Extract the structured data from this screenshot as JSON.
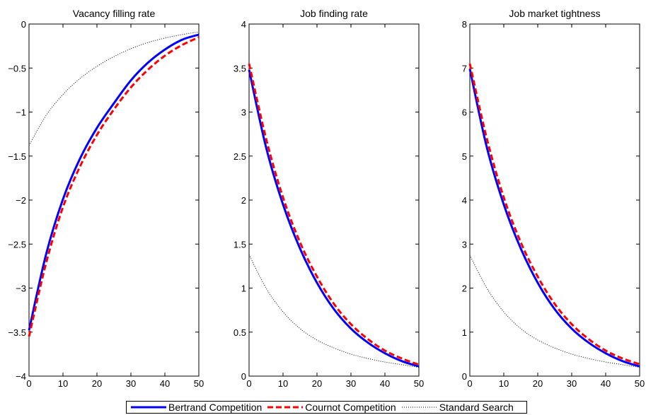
{
  "colors": {
    "bertrand": "#0000ff",
    "cournot": "#ff0000",
    "standard": "#000000"
  },
  "legend": {
    "bertrand": "Bertrand Competition",
    "cournot": "Cournot Competition",
    "standard": "Standard Search"
  },
  "chart_data": [
    {
      "type": "line",
      "title": "Vacancy filling rate",
      "xlim": [
        0,
        50
      ],
      "ylim": [
        -4,
        0
      ],
      "xticks": [
        0,
        10,
        20,
        30,
        40,
        50
      ],
      "yticks": [
        -4,
        -3.5,
        -3,
        -2.5,
        -2,
        -1.5,
        -1,
        -0.5,
        0
      ],
      "ytick_labels": [
        "−4",
        "−3.5",
        "−3",
        "−2.5",
        "−2",
        "−1.5",
        "−1",
        "−0.5",
        "0"
      ],
      "x": [
        0,
        5,
        10,
        15,
        20,
        25,
        30,
        35,
        40,
        45,
        50
      ],
      "series": [
        {
          "name": "Bertrand Competition",
          "key": "bertrand",
          "style": "solid",
          "values": [
            -3.48,
            -2.62,
            -1.99,
            -1.53,
            -1.18,
            -0.9,
            -0.64,
            -0.44,
            -0.29,
            -0.18,
            -0.12
          ]
        },
        {
          "name": "Cournot Competition",
          "key": "cournot",
          "style": "dashed",
          "values": [
            -3.55,
            -2.72,
            -2.08,
            -1.62,
            -1.26,
            -0.97,
            -0.72,
            -0.52,
            -0.36,
            -0.24,
            -0.15
          ]
        },
        {
          "name": "Standard Search",
          "key": "standard",
          "style": "dotted",
          "values": [
            -1.38,
            -1.04,
            -0.8,
            -0.62,
            -0.48,
            -0.37,
            -0.28,
            -0.21,
            -0.16,
            -0.12,
            -0.09
          ]
        }
      ]
    },
    {
      "type": "line",
      "title": "Job finding rate",
      "xlim": [
        0,
        50
      ],
      "ylim": [
        0,
        4
      ],
      "xticks": [
        0,
        10,
        20,
        30,
        40,
        50
      ],
      "yticks": [
        0,
        0.5,
        1,
        1.5,
        2,
        2.5,
        3,
        3.5,
        4
      ],
      "ytick_labels": [
        "0",
        "0.5",
        "1",
        "1.5",
        "2",
        "2.5",
        "3",
        "3.5",
        "4"
      ],
      "x": [
        0,
        5,
        10,
        15,
        20,
        25,
        30,
        35,
        40,
        45,
        50
      ],
      "series": [
        {
          "name": "Bertrand Competition",
          "key": "bertrand",
          "style": "solid",
          "values": [
            3.48,
            2.6,
            1.95,
            1.45,
            1.06,
            0.76,
            0.54,
            0.38,
            0.26,
            0.17,
            0.11
          ]
        },
        {
          "name": "Cournot Competition",
          "key": "cournot",
          "style": "dashed",
          "values": [
            3.55,
            2.7,
            2.03,
            1.52,
            1.13,
            0.82,
            0.59,
            0.42,
            0.29,
            0.2,
            0.13
          ]
        },
        {
          "name": "Standard Search",
          "key": "standard",
          "style": "dotted",
          "values": [
            1.38,
            1.0,
            0.73,
            0.54,
            0.41,
            0.32,
            0.25,
            0.2,
            0.16,
            0.13,
            0.1
          ]
        }
      ]
    },
    {
      "type": "line",
      "title": "Job market tightness",
      "xlim": [
        0,
        50
      ],
      "ylim": [
        0,
        8
      ],
      "xticks": [
        0,
        10,
        20,
        30,
        40,
        50
      ],
      "yticks": [
        0,
        1,
        2,
        3,
        4,
        5,
        6,
        7,
        8
      ],
      "ytick_labels": [
        "0",
        "1",
        "2",
        "3",
        "4",
        "5",
        "6",
        "7",
        "8"
      ],
      "x": [
        0,
        5,
        10,
        15,
        20,
        25,
        30,
        35,
        40,
        45,
        50
      ],
      "series": [
        {
          "name": "Bertrand Competition",
          "key": "bertrand",
          "style": "solid",
          "values": [
            6.98,
            5.2,
            3.9,
            2.9,
            2.12,
            1.52,
            1.08,
            0.76,
            0.52,
            0.34,
            0.22
          ]
        },
        {
          "name": "Cournot Competition",
          "key": "cournot",
          "style": "dashed",
          "values": [
            7.1,
            5.4,
            4.06,
            3.04,
            2.26,
            1.64,
            1.18,
            0.84,
            0.58,
            0.4,
            0.27
          ]
        },
        {
          "name": "Standard Search",
          "key": "standard",
          "style": "dotted",
          "values": [
            2.75,
            2.0,
            1.46,
            1.08,
            0.82,
            0.64,
            0.5,
            0.4,
            0.32,
            0.26,
            0.2
          ]
        }
      ]
    }
  ]
}
